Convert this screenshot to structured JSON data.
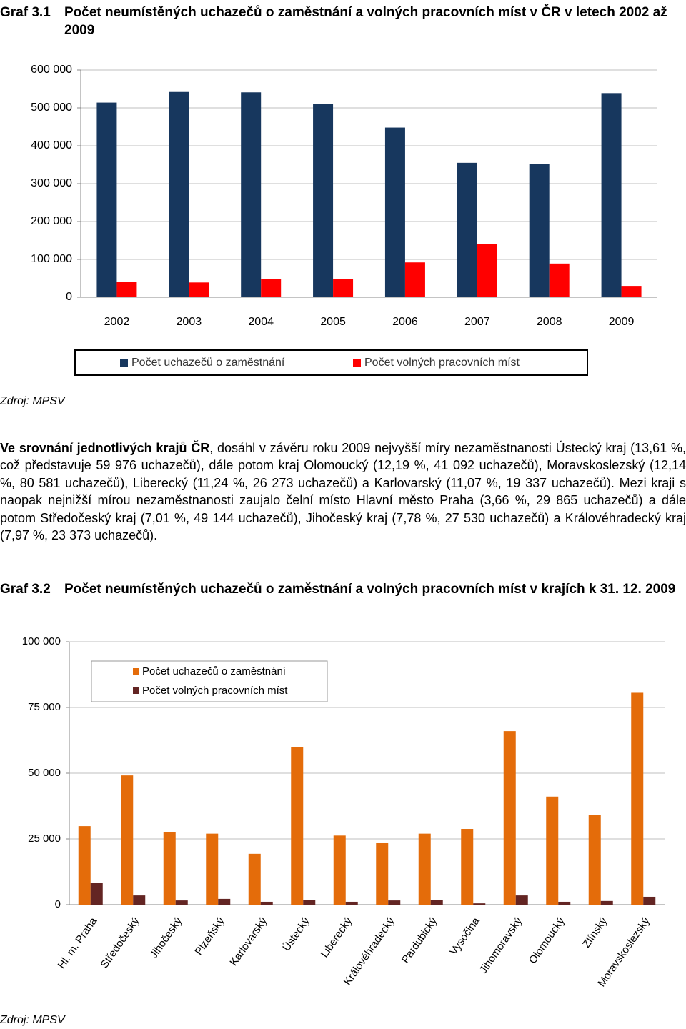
{
  "chart_data": [
    {
      "type": "bar",
      "label": "Graf 3.1",
      "title": "Počet neumístěných uchazečů o zaměstnání a volných pracovních míst v ČR v letech 2002 až 2009",
      "categories": [
        "2002",
        "2003",
        "2004",
        "2005",
        "2006",
        "2007",
        "2008",
        "2009"
      ],
      "series": [
        {
          "name": "Počet uchazečů o zaměstnání",
          "color": "#17375e",
          "values": [
            514000,
            542000,
            541000,
            510000,
            448000,
            355000,
            352000,
            539000
          ]
        },
        {
          "name": "Počet volných pracovních míst",
          "color": "#ff0000",
          "values": [
            41000,
            39000,
            49000,
            49000,
            92000,
            141000,
            89000,
            30000
          ]
        }
      ],
      "ylim": [
        0,
        600000
      ],
      "yticks": [
        0,
        {
          "value": 100000,
          "label": "100 000"
        },
        {
          "value": 200000,
          "label": "200 000"
        },
        {
          "value": 300000,
          "label": "300 000"
        },
        {
          "value": 400000,
          "label": "400 000"
        },
        {
          "value": 500000,
          "label": "500 000"
        },
        {
          "value": 600000,
          "label": "600 000"
        }
      ],
      "grid": true,
      "legend": "bottom",
      "source": "Zdroj: MPSV"
    },
    {
      "type": "bar",
      "label": "Graf 3.2",
      "title": "Počet neumístěných uchazečů o zaměstnání a volných pracovních míst v krajích k 31. 12. 2009",
      "categories": [
        "Hl. m. Praha",
        "Středočeský",
        "Jihočeský",
        "Plzeňský",
        "Karlovarský",
        "Ústecký",
        "Liberecký",
        "Královéhradecký",
        "Pardubický",
        "Vysočina",
        "Jihomoravský",
        "Olomoucký",
        "Zlínský",
        "Moravskoslezský"
      ],
      "series": [
        {
          "name": "Počet uchazečů o zaměstnání",
          "color": "#e46c0a",
          "values": [
            29865,
            49144,
            27530,
            27000,
            19337,
            59976,
            26273,
            23373,
            27000,
            28800,
            66000,
            41092,
            34200,
            80581
          ]
        },
        {
          "name": "Počet volných pracovních míst",
          "color": "#632523",
          "values": [
            8400,
            3500,
            1600,
            2200,
            1100,
            1900,
            1100,
            1600,
            1900,
            500,
            3500,
            1100,
            1400,
            3000
          ]
        }
      ],
      "ylim": [
        0,
        100000
      ],
      "yticks": [
        0,
        {
          "value": 25000,
          "label": "25 000"
        },
        {
          "value": 50000,
          "label": "50 000"
        },
        {
          "value": 75000,
          "label": "75 000"
        },
        {
          "value": 100000,
          "label": "100 000"
        }
      ],
      "grid": true,
      "legend": "top-left",
      "source": "Zdroj: MPSV"
    }
  ],
  "paragraph": {
    "lead": "Ve srovnání jednotlivých krajů ČR",
    "text": ", dosáhl v závěru roku 2009 nejvyšší míry nezaměstnanosti Ústecký kraj (13,61 %, což představuje 59 976 uchazečů), dále potom kraj Olomoucký (12,19 %, 41 092 uchazečů), Moravskoslezský (12,14 %, 80 581 uchazečů), Liberecký (11,24 %, 26 273 uchazečů) a Karlovarský (11,07 %, 19 337 uchazečů). Mezi kraji s naopak nejnižší mírou nezaměstnanosti zaujalo čelní místo Hlavní město Praha (3,66 %, 29 865 uchazečů) a dále potom Středočeský kraj (7,01 %, 49 144 uchazečů), Jihočeský kraj (7,78 %, 27 530 uchazečů) a Královéhradecký kraj (7,97 %, 23 373 uchazečů)."
  }
}
